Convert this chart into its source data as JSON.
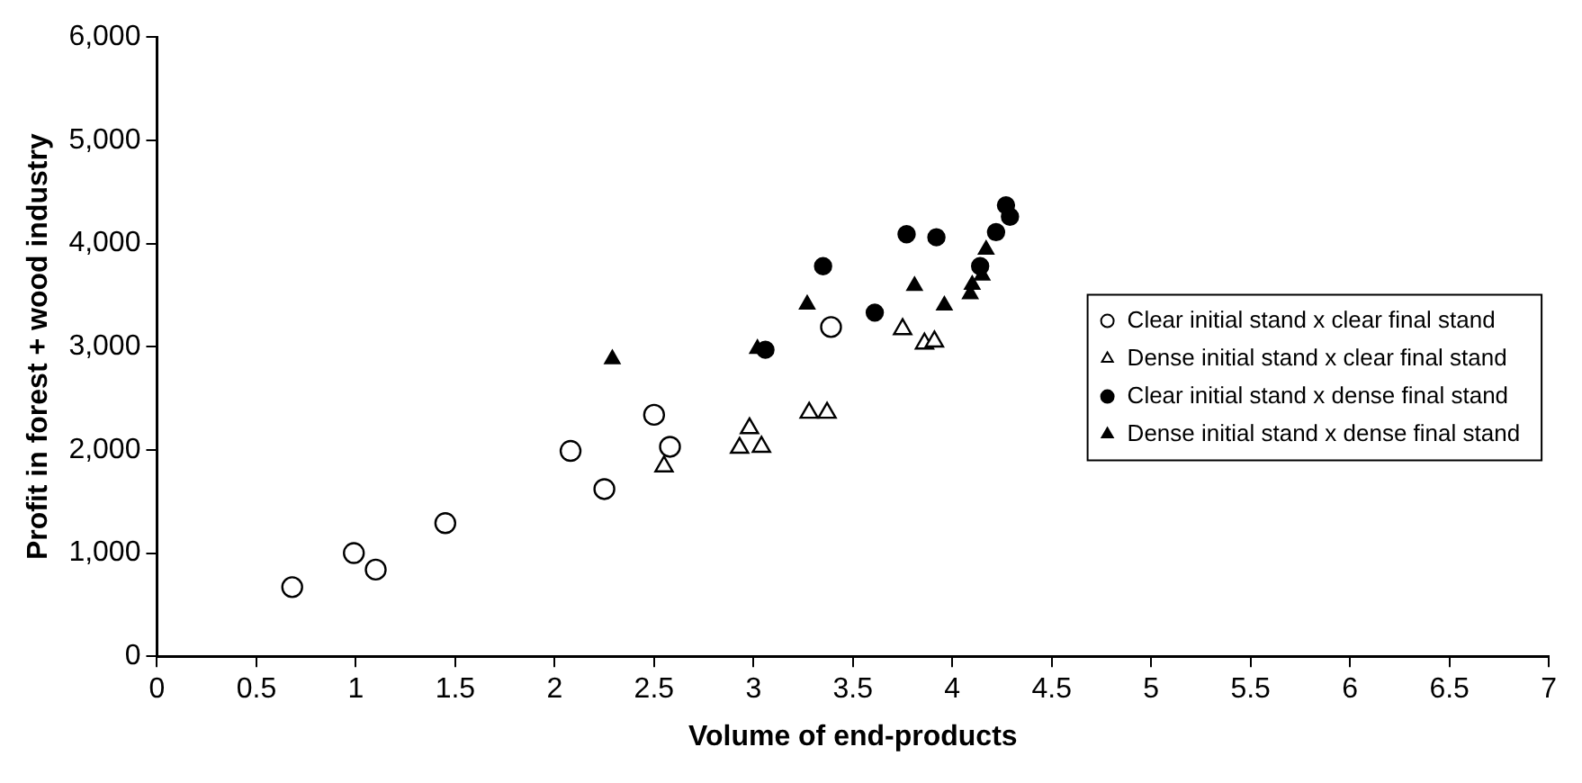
{
  "chart_data": {
    "type": "scatter",
    "xlabel": "Volume of end-products",
    "ylabel": "Profit in forest + wood industry",
    "xlim": [
      0,
      7
    ],
    "xticks": [
      0,
      0.5,
      1,
      1.5,
      2,
      2.5,
      3,
      3.5,
      4,
      4.5,
      5,
      5.5,
      6,
      6.5,
      7
    ],
    "ylim": [
      0,
      6000
    ],
    "yticks": [
      0,
      {
        "value": 1000,
        "label": "1,000"
      },
      {
        "value": 2000,
        "label": "2,000"
      },
      {
        "value": 3000,
        "label": "3,000"
      },
      {
        "value": 4000,
        "label": "4,000"
      },
      {
        "value": 5000,
        "label": "5,000"
      },
      {
        "value": 6000,
        "label": "6,000"
      }
    ],
    "grid": false,
    "legend": "right",
    "series": [
      {
        "name": "Clear initial stand x clear final stand",
        "color": "#ffffff",
        "marker": "circle",
        "x": [
          0.68,
          0.99,
          1.1,
          1.45,
          2.08,
          2.25,
          2.5,
          2.58,
          3.39
        ],
        "values": [
          670,
          1000,
          840,
          1290,
          1990,
          1620,
          2340,
          2030,
          3190
        ]
      },
      {
        "name": "Dense initial stand x clear final stand",
        "color": "#ffffff",
        "marker": "triangle",
        "x": [
          2.55,
          2.93,
          2.98,
          3.04,
          3.28,
          3.37,
          3.75,
          3.86,
          3.91
        ],
        "values": [
          1840,
          2020,
          2210,
          2030,
          2360,
          2360,
          3170,
          3030,
          3050
        ]
      },
      {
        "name": "Clear initial stand x dense final stand",
        "color": "#000000",
        "marker": "circle",
        "x": [
          3.06,
          3.35,
          3.61,
          3.77,
          3.92,
          4.14,
          4.22,
          4.27,
          4.29
        ],
        "values": [
          2970,
          3780,
          3330,
          4090,
          4060,
          3780,
          4110,
          4370,
          4260
        ]
      },
      {
        "name": "Dense initial stand x dense final stand",
        "color": "#000000",
        "marker": "triangle",
        "x": [
          2.29,
          3.02,
          3.27,
          3.81,
          3.96,
          4.09,
          4.1,
          4.15,
          4.17
        ],
        "values": [
          2880,
          2980,
          3410,
          3590,
          3400,
          3510,
          3600,
          3690,
          3940
        ]
      }
    ]
  }
}
